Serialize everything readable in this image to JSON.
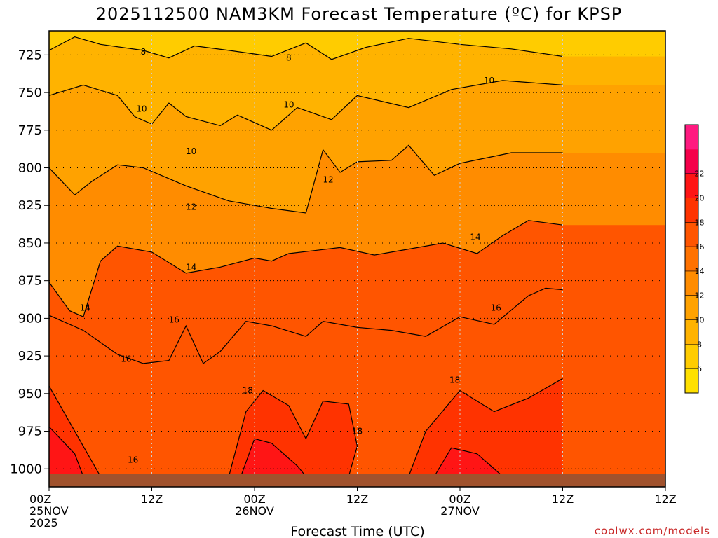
{
  "chart_data": {
    "type": "heatmap",
    "title": "2025112500 NAM3KM Forecast Temperature (ºC) for KPSP",
    "xlabel": "Forecast Time (UTC)",
    "ylabel": "",
    "credit": "coolwx.com/models",
    "x_range_hours": [
      0,
      36
    ],
    "y_range_hPa": [
      709,
      1005
    ],
    "y_ticks": [
      725,
      750,
      775,
      800,
      825,
      850,
      875,
      900,
      925,
      950,
      975,
      1000
    ],
    "y_tick_labels": [
      "725",
      "750",
      "775",
      "800",
      "825",
      "850",
      "875",
      "900",
      "925",
      "950",
      "975",
      "1000"
    ],
    "x_ticks": [
      {
        "hour": 0,
        "line1": "00Z",
        "line2": "25NOV",
        "line3": "2025"
      },
      {
        "hour": 6,
        "line1": "12Z",
        "line2": "",
        "line3": ""
      },
      {
        "hour": 12,
        "line1": "00Z",
        "line2": "26NOV",
        "line3": ""
      },
      {
        "hour": 18,
        "line1": "12Z",
        "line2": "",
        "line3": ""
      },
      {
        "hour": 24,
        "line1": "00Z",
        "line2": "27NOV",
        "line3": ""
      },
      {
        "hour": 30,
        "line1": "12Z",
        "line2": "",
        "line3": ""
      }
    ],
    "x_tick_hours_full": [
      0,
      12,
      24,
      36
    ],
    "x_tick_labels_full": [
      "00Z",
      "12Z",
      "00Z",
      "12Z"
    ],
    "date_labels": [
      "25NOV",
      "26NOV",
      "27NOV"
    ],
    "year_label": "2025",
    "color_levels": [
      4,
      6,
      8,
      10,
      12,
      14,
      16,
      18,
      20,
      22,
      24
    ],
    "colorbar_labels": [
      "6",
      "8",
      "10",
      "12",
      "14",
      "16",
      "18",
      "20",
      "22"
    ],
    "colors": [
      "#ffe000",
      "#ffcc00",
      "#ffb300",
      "#ffa200",
      "#ff8c00",
      "#ff7200",
      "#ff5500",
      "#ff3300",
      "#ff1515",
      "#f5004a",
      "#ff1a80"
    ],
    "contour_lines": [
      {
        "value": 8,
        "label": "8",
        "points": [
          [
            0,
            722
          ],
          [
            1.5,
            713
          ],
          [
            3,
            718
          ],
          [
            5.5,
            722
          ],
          [
            7,
            727
          ],
          [
            8.5,
            719
          ],
          [
            10.5,
            722
          ],
          [
            13,
            726
          ],
          [
            15,
            717
          ],
          [
            16.5,
            728
          ],
          [
            18.5,
            720
          ],
          [
            21,
            714
          ],
          [
            24,
            718
          ],
          [
            27,
            721
          ],
          [
            30,
            726
          ]
        ]
      },
      {
        "value": 10,
        "label": "10",
        "points": [
          [
            0,
            752
          ],
          [
            2,
            745
          ],
          [
            4,
            752
          ],
          [
            5,
            766
          ],
          [
            6,
            771
          ],
          [
            7,
            757
          ],
          [
            8,
            766
          ],
          [
            10,
            772
          ],
          [
            11,
            765
          ],
          [
            13,
            775
          ],
          [
            14.5,
            760
          ],
          [
            16.5,
            768
          ],
          [
            18,
            752
          ],
          [
            21,
            760
          ],
          [
            23.5,
            748
          ],
          [
            26.5,
            742
          ],
          [
            30,
            745
          ]
        ]
      },
      {
        "value": 12,
        "label": "12",
        "points": [
          [
            0,
            800
          ],
          [
            1.5,
            818
          ],
          [
            2.5,
            809
          ],
          [
            4,
            798
          ],
          [
            5.5,
            800
          ],
          [
            8,
            812
          ],
          [
            10.5,
            822
          ],
          [
            13,
            827
          ],
          [
            15,
            830
          ],
          [
            16,
            788
          ],
          [
            17,
            803
          ],
          [
            18,
            796
          ],
          [
            20,
            795
          ],
          [
            21,
            785
          ],
          [
            22.5,
            805
          ],
          [
            24,
            797
          ],
          [
            27,
            790
          ],
          [
            30,
            790
          ]
        ]
      },
      {
        "value": 14,
        "label": "14",
        "points": [
          [
            0,
            876
          ],
          [
            1.2,
            895
          ],
          [
            2,
            899
          ],
          [
            3,
            862
          ],
          [
            4,
            852
          ],
          [
            6,
            856
          ],
          [
            8,
            870
          ],
          [
            10,
            866
          ],
          [
            12,
            860
          ],
          [
            13,
            862
          ],
          [
            14,
            857
          ],
          [
            15.5,
            855
          ],
          [
            17,
            853
          ],
          [
            19,
            858
          ],
          [
            21,
            854
          ],
          [
            23,
            850
          ],
          [
            25,
            857
          ],
          [
            26.5,
            845
          ],
          [
            28,
            835
          ],
          [
            30,
            838
          ]
        ]
      },
      {
        "value": 16,
        "label": "16",
        "points": [
          [
            0,
            898
          ],
          [
            2,
            908
          ],
          [
            4,
            924
          ],
          [
            5.5,
            930
          ],
          [
            7,
            928
          ],
          [
            8,
            905
          ],
          [
            9,
            930
          ],
          [
            10,
            922
          ],
          [
            11.5,
            902
          ],
          [
            13,
            905
          ],
          [
            15,
            912
          ],
          [
            16,
            902
          ],
          [
            18,
            906
          ],
          [
            20,
            908
          ],
          [
            22,
            912
          ],
          [
            24,
            899
          ],
          [
            26,
            904
          ],
          [
            28,
            885
          ],
          [
            29,
            880
          ],
          [
            30,
            881
          ]
        ]
      },
      {
        "value": 18,
        "label": "18",
        "points": [
          [
            0,
            945
          ],
          [
            2,
            985
          ],
          [
            3,
            1005
          ]
        ]
      },
      {
        "value": 18,
        "label": "18",
        "points": [
          [
            10.5,
            1005
          ],
          [
            11.5,
            962
          ],
          [
            12.5,
            948
          ],
          [
            14,
            958
          ],
          [
            15,
            980
          ],
          [
            16,
            955
          ],
          [
            17.5,
            957
          ],
          [
            18,
            985
          ],
          [
            17.5,
            1005
          ]
        ]
      },
      {
        "value": 18,
        "label": "18",
        "points": [
          [
            21,
            1005
          ],
          [
            22,
            975
          ],
          [
            24,
            948
          ],
          [
            26,
            962
          ],
          [
            28,
            953
          ],
          [
            30,
            940
          ]
        ]
      },
      {
        "value": 20,
        "label": "20",
        "points": [
          [
            0,
            972
          ],
          [
            1.5,
            990
          ],
          [
            2,
            1005
          ]
        ]
      },
      {
        "value": 20,
        "label": "20",
        "points": [
          [
            11.2,
            1005
          ],
          [
            12,
            980
          ],
          [
            13,
            983
          ],
          [
            14.5,
            998
          ],
          [
            15,
            1005
          ]
        ]
      },
      {
        "value": 20,
        "label": "20",
        "points": [
          [
            22.5,
            1005
          ],
          [
            23.5,
            986
          ],
          [
            25,
            990
          ],
          [
            26.5,
            1005
          ]
        ]
      }
    ],
    "contour_labels": [
      {
        "value": "8",
        "hour": 5.5,
        "pressure": 723
      },
      {
        "value": "8",
        "hour": 14,
        "pressure": 727
      },
      {
        "value": "10",
        "hour": 5.4,
        "pressure": 761
      },
      {
        "value": "10",
        "hour": 8.3,
        "pressure": 789
      },
      {
        "value": "10",
        "hour": 14,
        "pressure": 758
      },
      {
        "value": "10",
        "hour": 25.7,
        "pressure": 742
      },
      {
        "value": "12",
        "hour": 8.3,
        "pressure": 826
      },
      {
        "value": "12",
        "hour": 16.3,
        "pressure": 808
      },
      {
        "value": "14",
        "hour": 2.1,
        "pressure": 893
      },
      {
        "value": "14",
        "hour": 8.3,
        "pressure": 866
      },
      {
        "value": "14",
        "hour": 24.9,
        "pressure": 846
      },
      {
        "value": "16",
        "hour": 4.5,
        "pressure": 927
      },
      {
        "value": "16",
        "hour": 7.3,
        "pressure": 901
      },
      {
        "value": "16",
        "hour": 4.9,
        "pressure": 994
      },
      {
        "value": "16",
        "hour": 26.1,
        "pressure": 893
      },
      {
        "value": "18",
        "hour": 11.6,
        "pressure": 948
      },
      {
        "value": "18",
        "hour": 18,
        "pressure": 975
      },
      {
        "value": "18",
        "hour": 23.7,
        "pressure": 941
      }
    ]
  }
}
